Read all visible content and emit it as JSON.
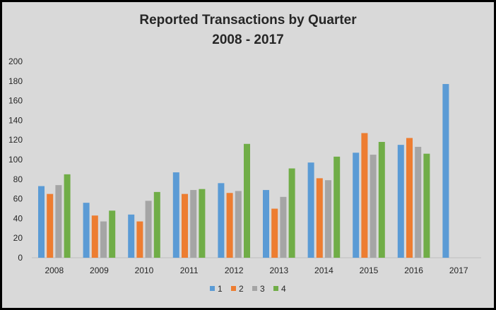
{
  "chart_data": {
    "type": "bar",
    "title": "Reported Transactions  by Quarter",
    "subtitle": "2008 - 2017",
    "xlabel": "",
    "ylabel": "",
    "ylim": [
      0,
      200
    ],
    "yticks": [
      0,
      20,
      40,
      60,
      80,
      100,
      120,
      140,
      160,
      180,
      200
    ],
    "grid": false,
    "legend_position": "bottom",
    "categories": [
      "2008",
      "2009",
      "2010",
      "2011",
      "2012",
      "2013",
      "2014",
      "2015",
      "2016",
      "2017"
    ],
    "series": [
      {
        "name": "1",
        "color": "#5b9bd5",
        "values": [
          73,
          56,
          44,
          87,
          76,
          69,
          97,
          107,
          115,
          177
        ]
      },
      {
        "name": "2",
        "color": "#ed7d31",
        "values": [
          65,
          43,
          37,
          65,
          66,
          50,
          81,
          127,
          122,
          null
        ]
      },
      {
        "name": "3",
        "color": "#a5a5a5",
        "values": [
          74,
          37,
          58,
          69,
          68,
          62,
          79,
          105,
          113,
          null
        ]
      },
      {
        "name": "4",
        "color": "#70ad47",
        "values": [
          85,
          48,
          67,
          70,
          116,
          91,
          103,
          118,
          106,
          null
        ]
      }
    ]
  }
}
